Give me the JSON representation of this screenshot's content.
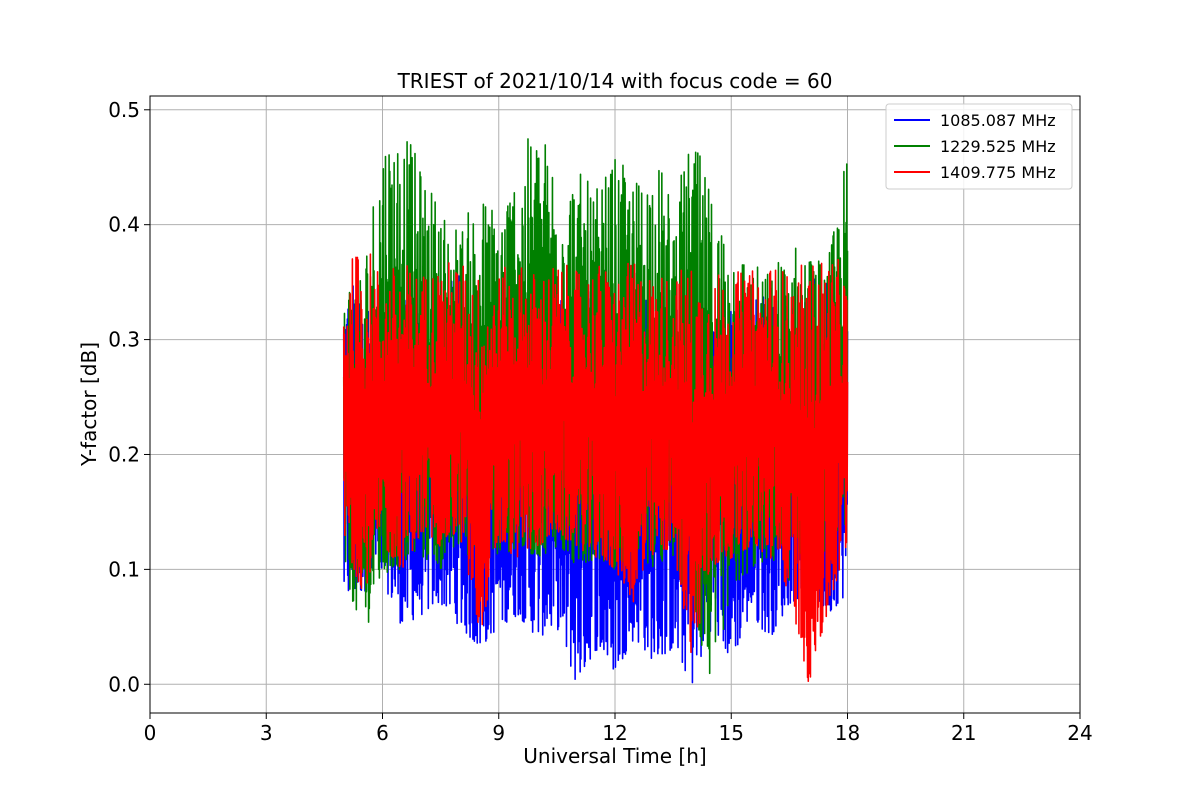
{
  "chart_data": {
    "type": "line",
    "title": "TRIEST of 2021/10/14 with focus code = 60",
    "xlabel": "Universal Time [h]",
    "ylabel": "Y-factor [dB]",
    "xlim": [
      0,
      24
    ],
    "ylim": [
      -0.025,
      0.512
    ],
    "xticks": [
      0,
      3,
      6,
      9,
      12,
      15,
      18,
      21,
      24
    ],
    "xtick_labels": [
      "0",
      "3",
      "6",
      "9",
      "12",
      "15",
      "18",
      "21",
      "24"
    ],
    "yticks": [
      0.0,
      0.1,
      0.2,
      0.3,
      0.4,
      0.5
    ],
    "ytick_labels": [
      "0.0",
      "0.1",
      "0.2",
      "0.3",
      "0.4",
      "0.5"
    ],
    "grid": true,
    "legend_position": "top-right",
    "series": [
      {
        "name": "1085.087 MHz",
        "color": "#0000ff",
        "x": [
          5.0,
          5.5,
          6.0,
          6.5,
          7.0,
          7.5,
          8.0,
          8.5,
          9.0,
          9.5,
          10.0,
          10.5,
          11.0,
          11.5,
          12.0,
          12.5,
          13.0,
          13.5,
          14.0,
          14.5,
          15.0,
          15.5,
          16.0,
          16.5,
          17.0,
          17.5,
          18.0
        ],
        "low": [
          0.07,
          0.08,
          0.09,
          0.05,
          0.06,
          0.07,
          0.05,
          0.03,
          0.05,
          0.06,
          0.04,
          0.05,
          0.0,
          0.03,
          0.01,
          0.04,
          0.02,
          0.03,
          0.0,
          0.05,
          0.02,
          0.06,
          0.04,
          0.07,
          0.08,
          0.06,
          0.08
        ],
        "high": [
          0.36,
          0.36,
          0.34,
          0.35,
          0.33,
          0.35,
          0.36,
          0.33,
          0.34,
          0.34,
          0.35,
          0.34,
          0.34,
          0.35,
          0.33,
          0.34,
          0.35,
          0.33,
          0.34,
          0.32,
          0.33,
          0.34,
          0.35,
          0.34,
          0.36,
          0.35,
          0.34
        ]
      },
      {
        "name": "1229.525 MHz",
        "color": "#008000",
        "x": [
          5.0,
          5.5,
          6.0,
          6.5,
          7.0,
          7.5,
          8.0,
          8.5,
          9.0,
          9.5,
          10.0,
          10.5,
          11.0,
          11.5,
          12.0,
          12.5,
          13.0,
          13.5,
          14.0,
          14.5,
          15.0,
          15.5,
          16.0,
          16.5,
          17.0,
          17.5,
          18.0
        ],
        "low": [
          0.1,
          0.04,
          0.09,
          0.1,
          0.11,
          0.1,
          0.12,
          0.1,
          0.11,
          0.12,
          0.11,
          0.12,
          0.1,
          0.11,
          0.1,
          0.11,
          0.1,
          0.11,
          0.06,
          0.0,
          0.08,
          0.1,
          0.11,
          0.09,
          0.12,
          0.11,
          0.13
        ],
        "high": [
          0.36,
          0.37,
          0.49,
          0.49,
          0.45,
          0.42,
          0.4,
          0.43,
          0.42,
          0.46,
          0.49,
          0.46,
          0.45,
          0.43,
          0.46,
          0.44,
          0.47,
          0.42,
          0.48,
          0.43,
          0.4,
          0.37,
          0.36,
          0.39,
          0.38,
          0.37,
          0.47
        ]
      },
      {
        "name": "1409.775 MHz",
        "color": "#ff0000",
        "x": [
          5.0,
          5.5,
          6.0,
          6.5,
          7.0,
          7.5,
          8.0,
          8.5,
          9.0,
          9.5,
          10.0,
          10.5,
          11.0,
          11.5,
          12.0,
          12.5,
          13.0,
          13.5,
          14.0,
          14.5,
          15.0,
          15.5,
          16.0,
          16.5,
          17.0,
          17.5,
          18.0
        ],
        "low": [
          0.12,
          0.08,
          0.12,
          0.1,
          0.13,
          0.12,
          0.13,
          0.04,
          0.12,
          0.11,
          0.12,
          0.13,
          0.12,
          0.11,
          0.1,
          0.07,
          0.11,
          0.12,
          0.02,
          0.1,
          0.11,
          0.12,
          0.11,
          0.08,
          0.0,
          0.06,
          0.12
        ],
        "high": [
          0.36,
          0.39,
          0.36,
          0.37,
          0.36,
          0.37,
          0.37,
          0.36,
          0.36,
          0.37,
          0.36,
          0.37,
          0.36,
          0.37,
          0.36,
          0.37,
          0.36,
          0.36,
          0.37,
          0.36,
          0.36,
          0.36,
          0.37,
          0.36,
          0.37,
          0.38,
          0.36
        ]
      }
    ]
  }
}
